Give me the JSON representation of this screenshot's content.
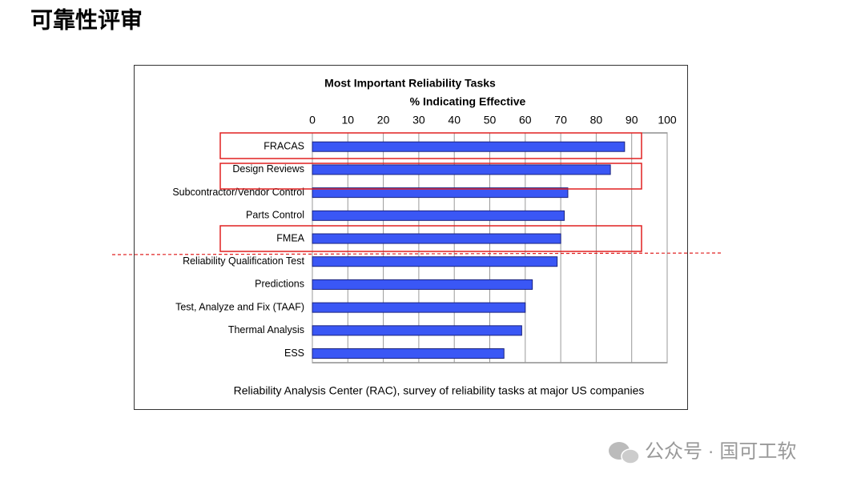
{
  "page_title": "可靠性评审",
  "chart_data": {
    "type": "bar",
    "orientation": "horizontal",
    "title": "Most Important Reliability Tasks",
    "x_label": "% Indicating Effective",
    "categories": [
      "FRACAS",
      "Design Reviews",
      "Subcontractor/Vendor Control",
      "Parts Control",
      "FMEA",
      "Reliability Qualification Test",
      "Predictions",
      "Test, Analyze and Fix (TAAF)",
      "Thermal Analysis",
      "ESS"
    ],
    "values": [
      88,
      84,
      72,
      71,
      70,
      69,
      62,
      60,
      59,
      54
    ],
    "color": "#3a57f5",
    "xlim": [
      0,
      100
    ],
    "xticks": [
      0,
      10,
      20,
      30,
      40,
      50,
      60,
      70,
      80,
      90,
      100
    ],
    "grid": true,
    "source": "Reliability Analysis Center (RAC), survey of reliability tasks at major US companies"
  },
  "watermark": "公众号 · 国可工软"
}
